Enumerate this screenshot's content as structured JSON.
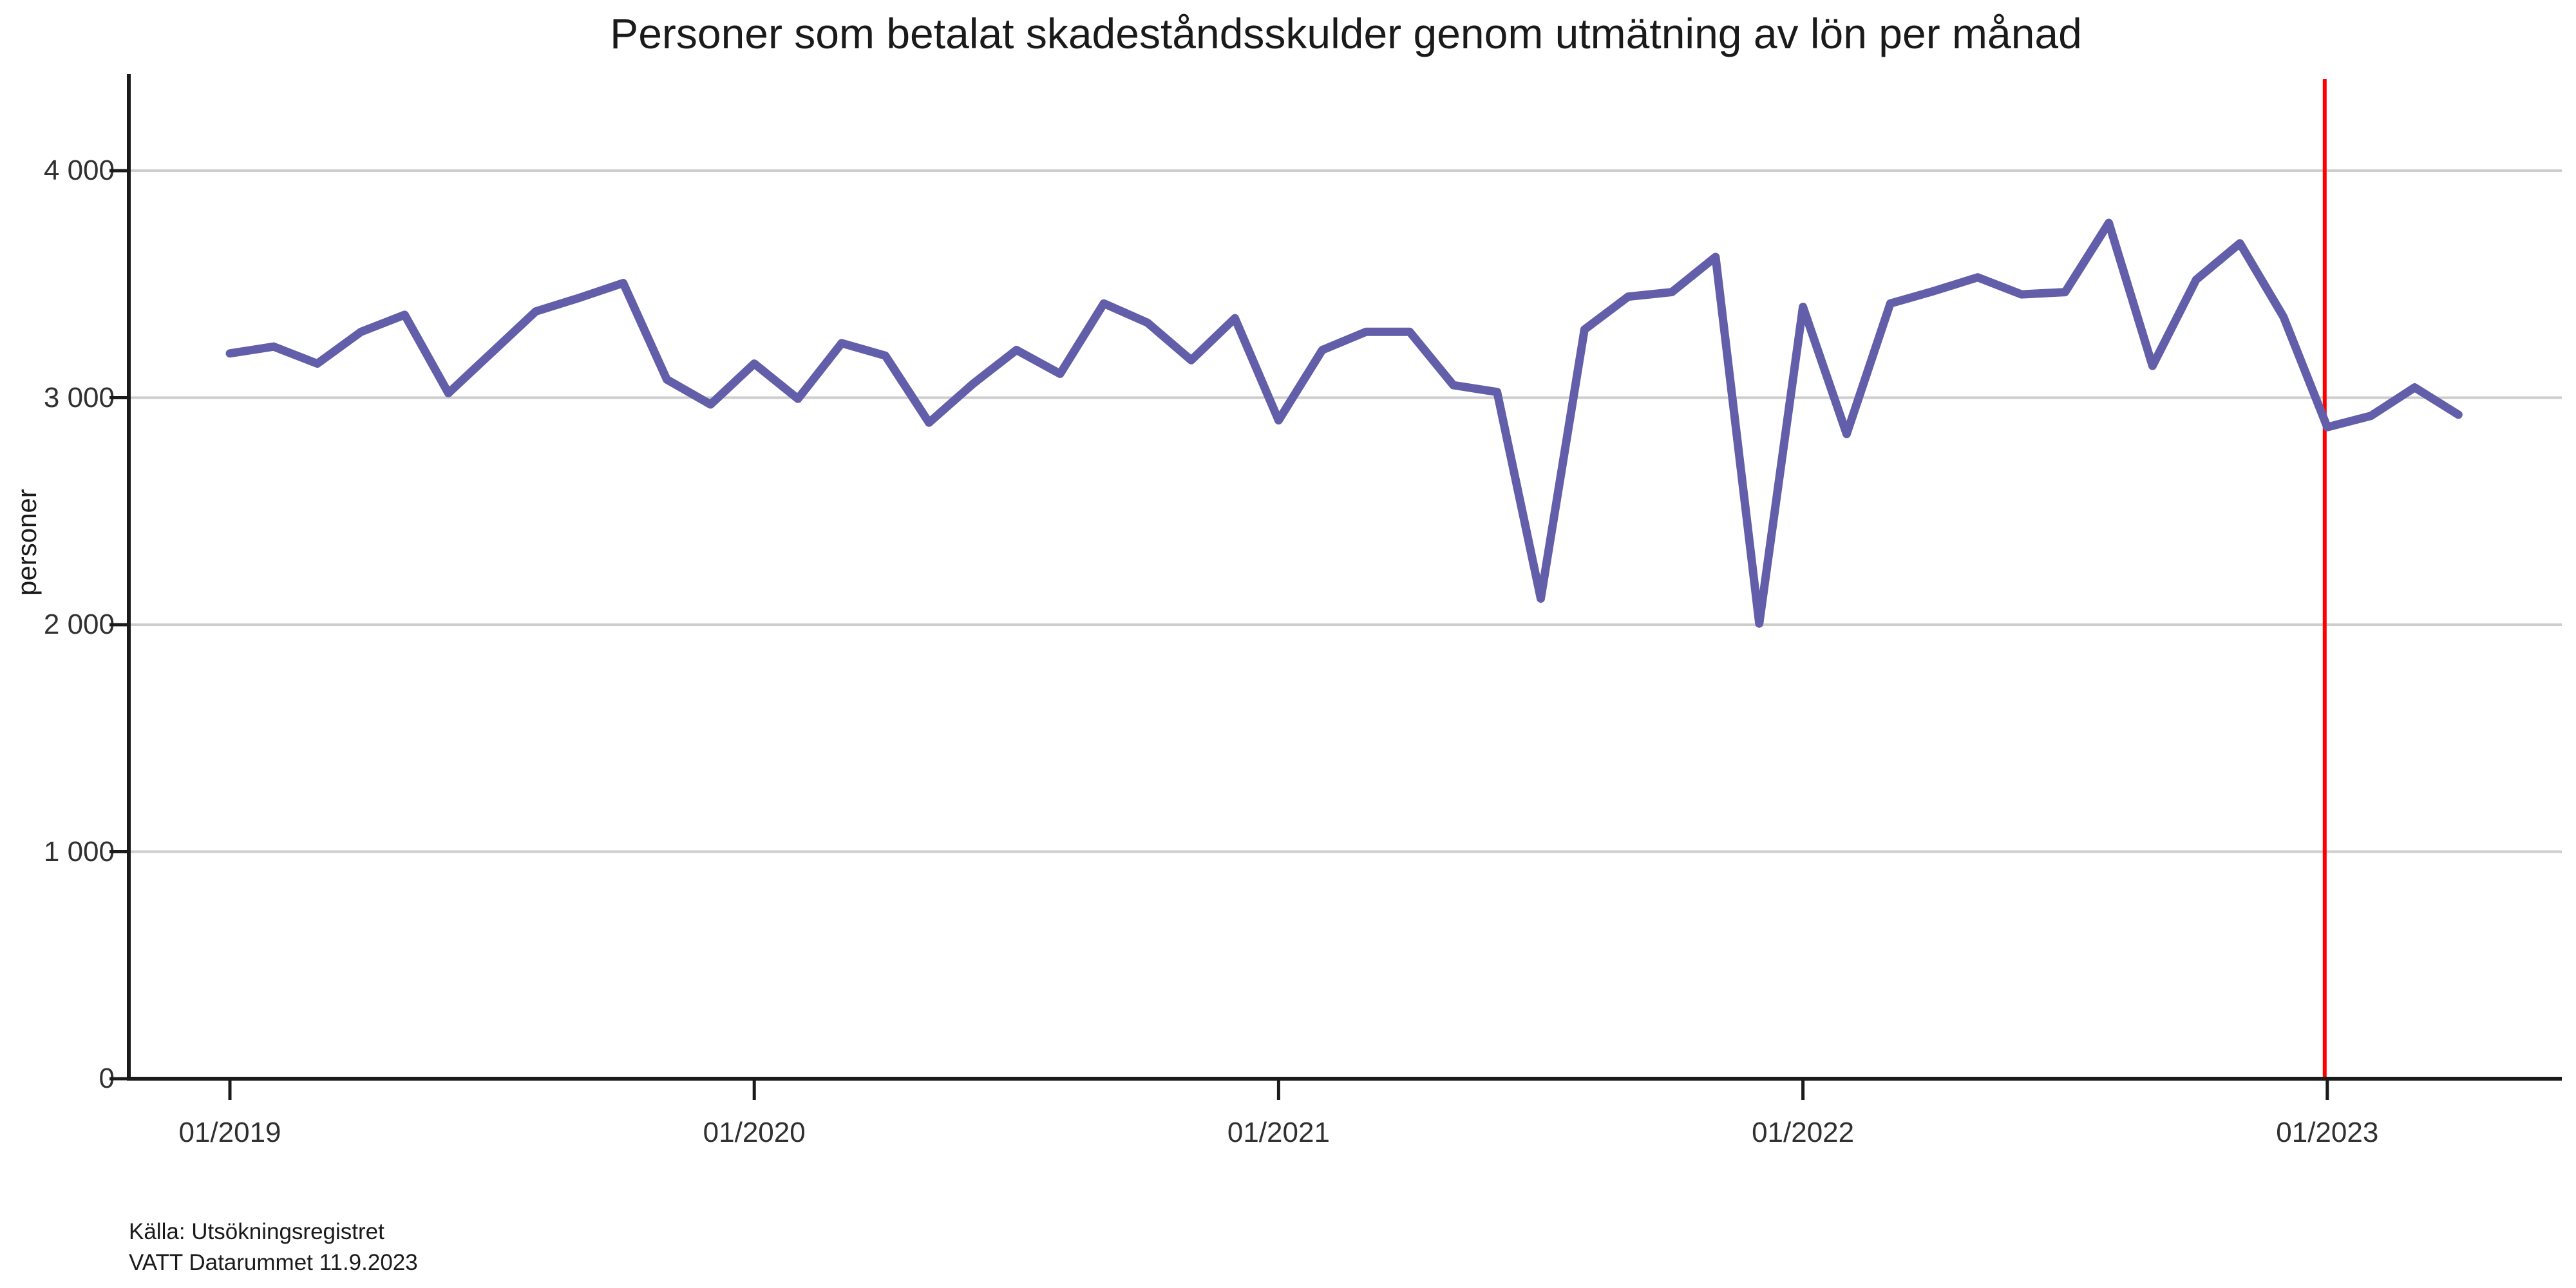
{
  "title": "Personer som betalat skadeståndsskulder genom utmätning av lön per månad",
  "source": {
    "line1": "Källa: Utsökningsregistret",
    "line2": "VATT Datarummet 11.9.2023"
  },
  "colors": {
    "line": "#635EA9",
    "reference_line": "#FF0000",
    "gridline": "#CDCDCD",
    "axis": "#1A1A1A",
    "text": "#303030"
  },
  "chart_data": {
    "type": "line",
    "title": "Personer som betalat skadeståndsskulder genom utmätning av lön per månad",
    "xlabel": "",
    "ylabel": "personer",
    "ylim": [
      0,
      4400
    ],
    "grid": "horizontal-only",
    "legend_position": "none",
    "yticks": [
      {
        "value": 0,
        "label": "0"
      },
      {
        "value": 1000,
        "label": "1 000"
      },
      {
        "value": 2000,
        "label": "2 000"
      },
      {
        "value": 3000,
        "label": "3 000"
      },
      {
        "value": 4000,
        "label": "4 000"
      }
    ],
    "xticks": [
      {
        "month_index": 0,
        "label": "01/2019"
      },
      {
        "month_index": 12,
        "label": "01/2020"
      },
      {
        "month_index": 24,
        "label": "01/2021"
      },
      {
        "month_index": 36,
        "label": "01/2022"
      },
      {
        "month_index": 48,
        "label": "01/2023"
      }
    ],
    "reference_line": {
      "at_month": "01/2023",
      "month_index": 48,
      "color": "#FF0000"
    },
    "x": [
      "01/2019",
      "02/2019",
      "03/2019",
      "04/2019",
      "05/2019",
      "06/2019",
      "07/2019",
      "08/2019",
      "09/2019",
      "10/2019",
      "11/2019",
      "12/2019",
      "01/2020",
      "02/2020",
      "03/2020",
      "04/2020",
      "05/2020",
      "06/2020",
      "07/2020",
      "08/2020",
      "09/2020",
      "10/2020",
      "11/2020",
      "12/2020",
      "01/2021",
      "02/2021",
      "03/2021",
      "04/2021",
      "05/2021",
      "06/2021",
      "07/2021",
      "08/2021",
      "09/2021",
      "10/2021",
      "11/2021",
      "12/2021",
      "01/2022",
      "02/2022",
      "03/2022",
      "04/2022",
      "05/2022",
      "06/2022",
      "07/2022",
      "08/2022",
      "09/2022",
      "10/2022",
      "11/2022",
      "12/2022",
      "01/2023",
      "02/2023",
      "03/2023",
      "04/2023"
    ],
    "series": [
      {
        "name": "personer",
        "color": "#635EA9",
        "values": [
          3195,
          3225,
          3150,
          3290,
          3365,
          3020,
          3200,
          3380,
          3440,
          3505,
          3080,
          2970,
          3150,
          2995,
          3240,
          3185,
          2890,
          3060,
          3210,
          3105,
          3415,
          3330,
          3165,
          3350,
          2900,
          3210,
          3290,
          3290,
          3055,
          3025,
          2115,
          3300,
          3445,
          3465,
          3620,
          2005,
          3400,
          2840,
          3415,
          3470,
          3530,
          3455,
          3465,
          3770,
          3140,
          3520,
          3680,
          3355,
          2870,
          2920,
          3045,
          2925
        ]
      }
    ]
  }
}
